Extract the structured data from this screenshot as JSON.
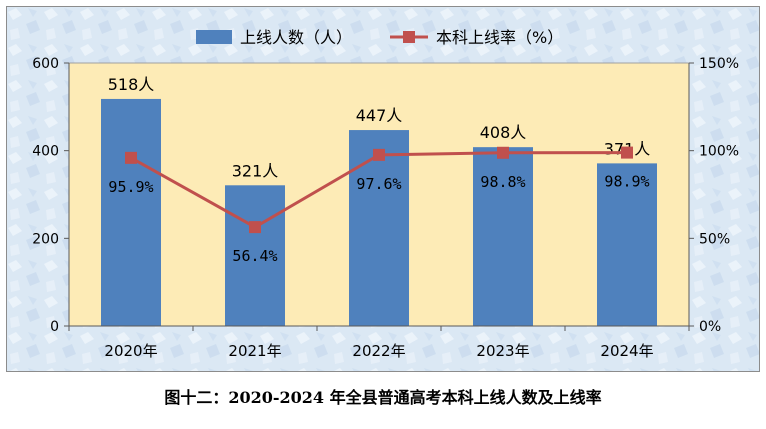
{
  "caption": "图十二：2020-2024 年全县普通高考本科上线人数及上线率",
  "colors": {
    "bar": "#4f81bd",
    "line": "#c0504d",
    "plot_bg": "#fdebb6",
    "frame_bg": "#dbe8f4",
    "border": "#8c8c8c"
  },
  "chart_data": {
    "type": "bar",
    "categories": [
      "2020年",
      "2021年",
      "2022年",
      "2023年",
      "2024年"
    ],
    "series": [
      {
        "name": "上线人数（人）",
        "type": "bar",
        "axis": "left",
        "values": [
          518,
          321,
          447,
          408,
          371
        ],
        "labels": [
          "518人",
          "321人",
          "447人",
          "408人",
          "371人"
        ]
      },
      {
        "name": "本科上线率（%）",
        "type": "line",
        "axis": "right",
        "values": [
          95.9,
          56.4,
          97.6,
          98.8,
          98.9
        ],
        "labels": [
          "95.9%",
          "56.4%",
          "97.6%",
          "98.8%",
          "98.9%"
        ]
      }
    ],
    "y_left": {
      "min": 0,
      "max": 600,
      "ticks": [
        0,
        200,
        400,
        600
      ],
      "tick_labels": [
        "0",
        "200",
        "400",
        "600"
      ]
    },
    "y_right": {
      "min": 0,
      "max": 150,
      "ticks": [
        0,
        50,
        100,
        150
      ],
      "tick_labels": [
        "0%",
        "50%",
        "100%",
        "150%"
      ]
    },
    "legend_position": "top",
    "grid": false
  }
}
